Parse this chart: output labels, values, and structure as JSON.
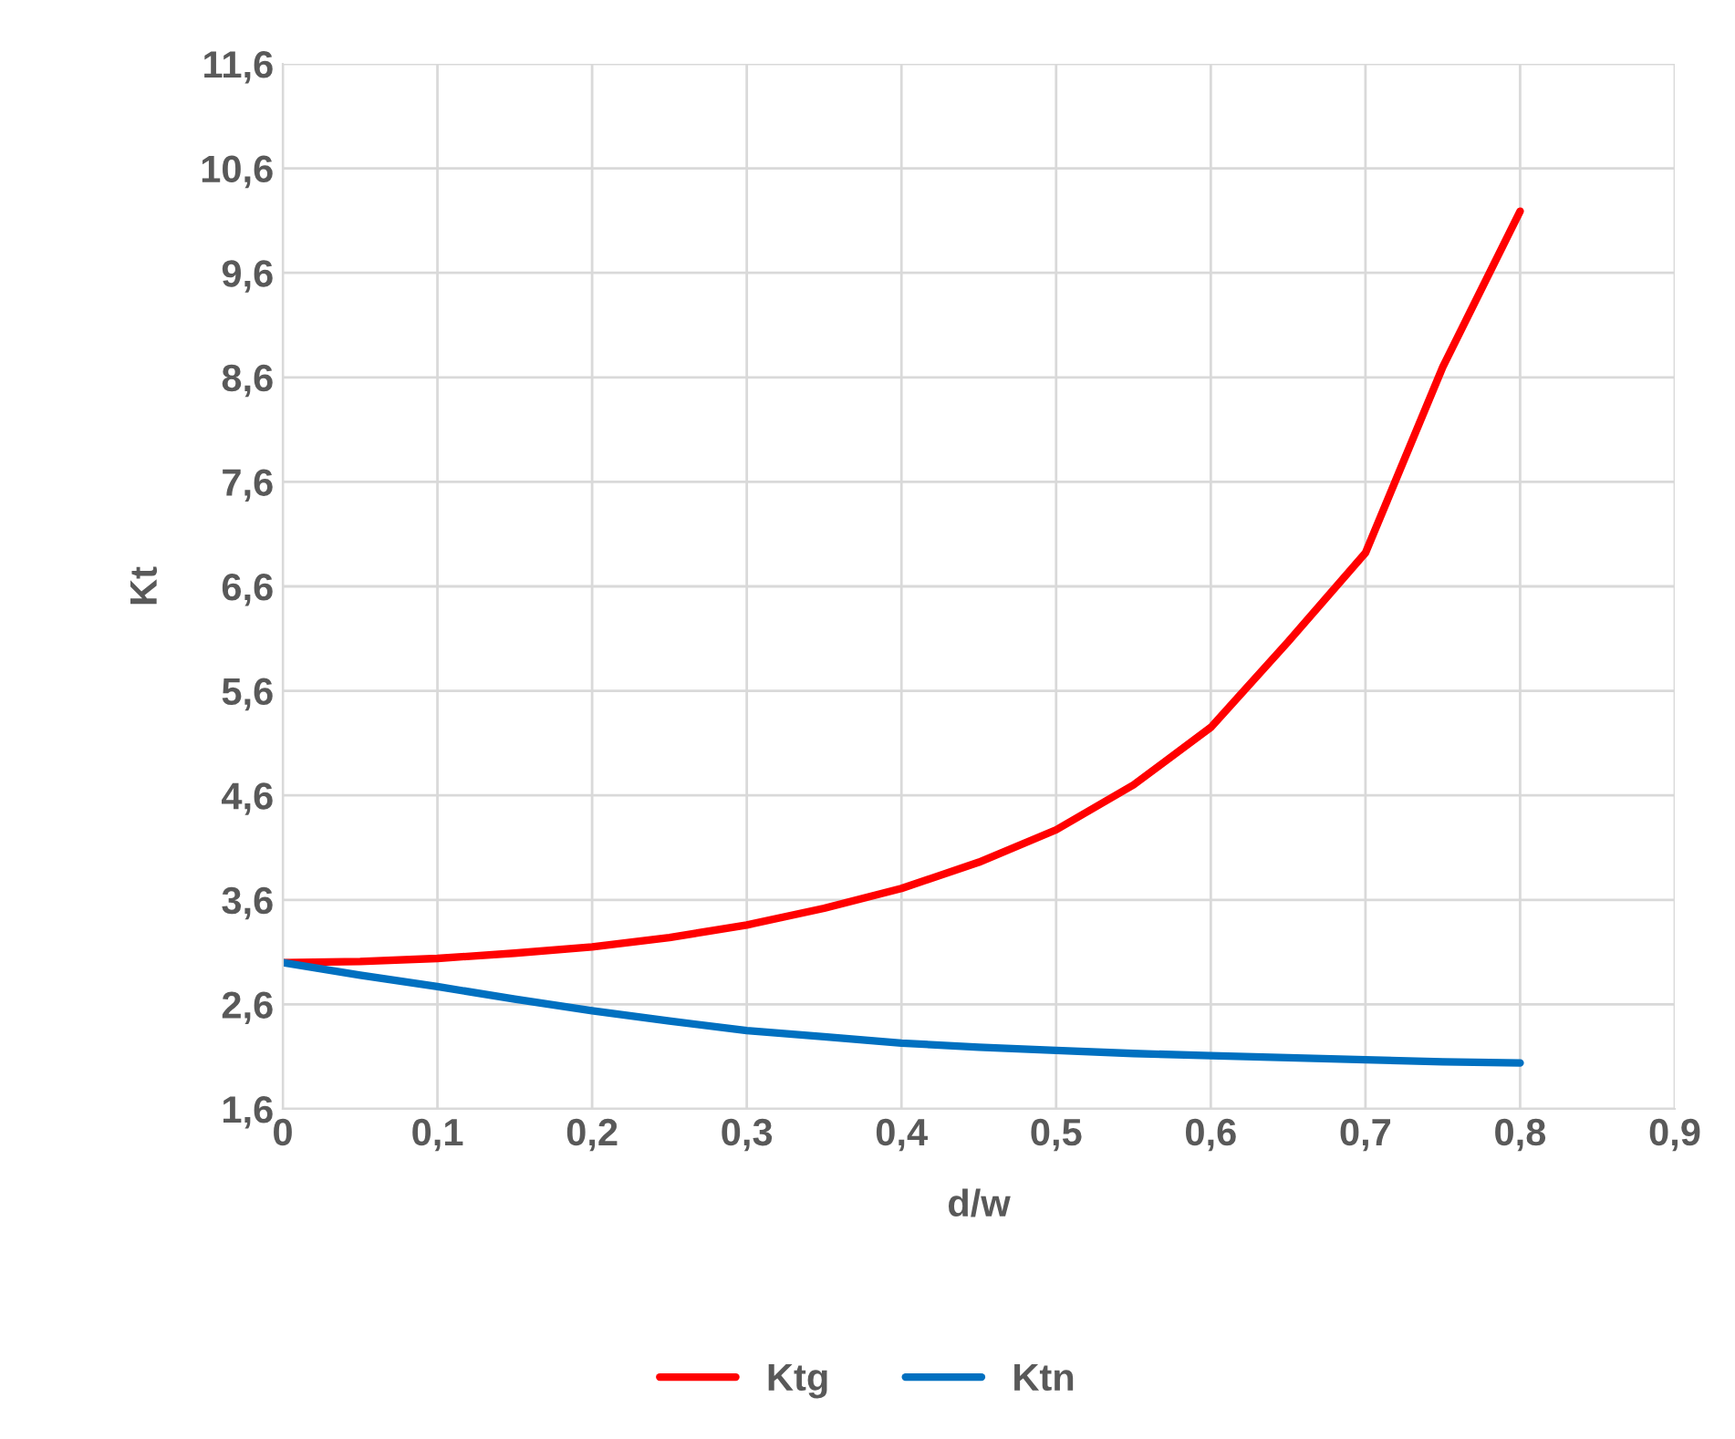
{
  "chart_data": {
    "type": "line",
    "xlabel": "d/w",
    "ylabel": "Kt",
    "xlim": [
      0,
      0.9
    ],
    "ylim": [
      1.6,
      11.6
    ],
    "xticks": [
      0,
      {
        "value": 0.1,
        "label": "0,1"
      },
      {
        "value": 0.2,
        "label": "0,2"
      },
      {
        "value": 0.3,
        "label": "0,3"
      },
      {
        "value": 0.4,
        "label": "0,4"
      },
      {
        "value": 0.5,
        "label": "0,5"
      },
      {
        "value": 0.6,
        "label": "0,6"
      },
      {
        "value": 0.7,
        "label": "0,7"
      },
      {
        "value": 0.8,
        "label": "0,8"
      },
      {
        "value": 0.9,
        "label": "0,9"
      }
    ],
    "yticks": [
      {
        "value": 1.6,
        "label": "1,6"
      },
      {
        "value": 2.6,
        "label": "2,6"
      },
      {
        "value": 3.6,
        "label": "3,6"
      },
      {
        "value": 4.6,
        "label": "4,6"
      },
      {
        "value": 5.6,
        "label": "5,6"
      },
      {
        "value": 6.6,
        "label": "6,6"
      },
      {
        "value": 7.6,
        "label": "7,6"
      },
      {
        "value": 8.6,
        "label": "8,6"
      },
      {
        "value": 9.6,
        "label": "9,6"
      },
      {
        "value": 10.6,
        "label": "10,6"
      },
      {
        "value": 11.6,
        "label": "11,6"
      }
    ],
    "x": [
      0,
      0.05,
      0.1,
      0.15,
      0.2,
      0.25,
      0.3,
      0.35,
      0.4,
      0.45,
      0.5,
      0.55,
      0.6,
      0.65,
      0.7,
      0.75,
      0.8
    ],
    "series": [
      {
        "name": "Ktg",
        "color": "#ff0000",
        "values": [
          3.0,
          3.01,
          3.04,
          3.09,
          3.15,
          3.24,
          3.36,
          3.52,
          3.71,
          3.96,
          4.27,
          4.7,
          5.25,
          6.07,
          6.92,
          8.7,
          10.19
        ]
      },
      {
        "name": "Ktn",
        "color": "#0070c0",
        "values": [
          3.0,
          2.88,
          2.77,
          2.65,
          2.54,
          2.44,
          2.35,
          2.29,
          2.23,
          2.19,
          2.16,
          2.13,
          2.11,
          2.09,
          2.07,
          2.05,
          2.04
        ]
      }
    ],
    "grid": true,
    "legend": "bottom",
    "marker": "none",
    "line_style": "solid"
  }
}
